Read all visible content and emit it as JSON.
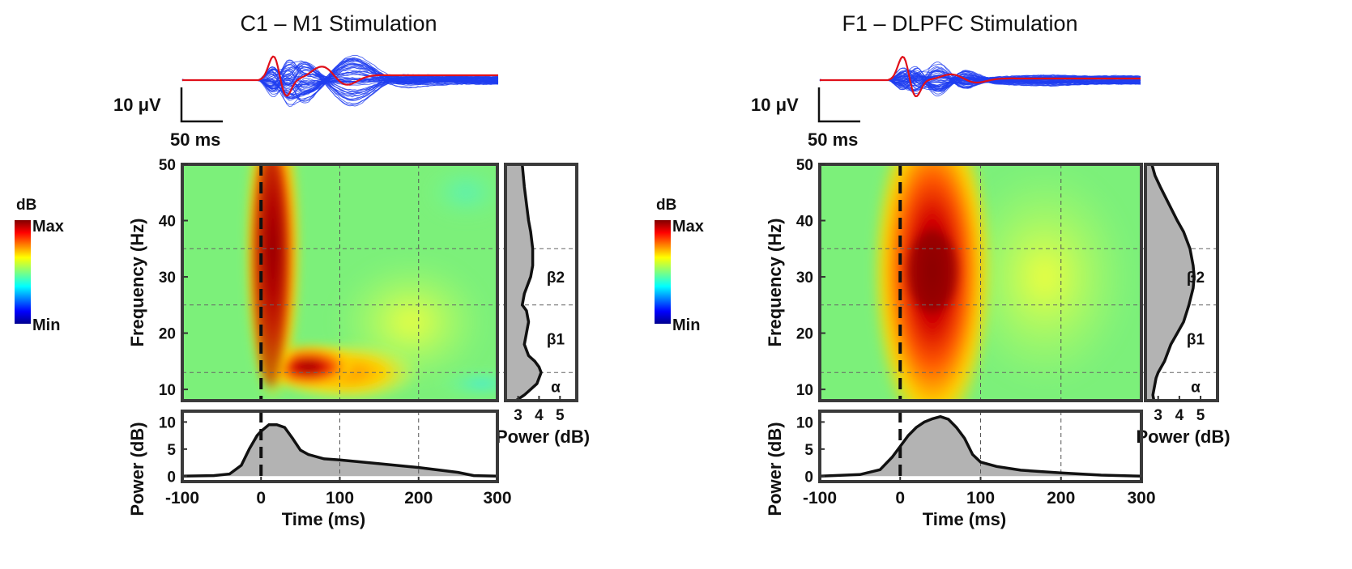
{
  "panels": [
    {
      "title": "C1 – M1 Stimulation",
      "scalebar": {
        "voltage_label": "10 μV",
        "time_label": "50 ms"
      },
      "colorbar": {
        "unit": "dB",
        "max_label": "Max",
        "min_label": "Min"
      },
      "tf_map": {
        "ylabel": "Frequency (Hz)",
        "yticks": [
          "10",
          "20",
          "30",
          "40",
          "50"
        ],
        "ylim": [
          8,
          50
        ],
        "xlim": [
          -100,
          300
        ],
        "hotspot": {
          "time_ms": 15,
          "freq_hz": 35
        }
      },
      "spectrum": {
        "xlabel": "Power (dB)",
        "xticks": [
          "3",
          "4",
          "5"
        ],
        "xlim": [
          2.4,
          5.8
        ],
        "bands": [
          {
            "label": "β2",
            "from_hz": 25,
            "to_hz": 35
          },
          {
            "label": "β1",
            "from_hz": 13,
            "to_hz": 25
          },
          {
            "label": "α",
            "from_hz": 8,
            "to_hz": 13
          }
        ],
        "freq_hz": [
          8,
          9,
          10,
          11,
          12,
          13,
          14,
          15,
          16,
          18,
          20,
          22,
          24,
          25,
          27,
          30,
          32,
          35,
          38,
          40,
          43,
          46,
          48,
          50
        ],
        "power_db": [
          2.9,
          3.3,
          3.6,
          3.9,
          4.0,
          4.1,
          4.0,
          3.8,
          3.5,
          3.3,
          3.4,
          3.5,
          3.4,
          3.2,
          3.3,
          3.6,
          3.7,
          3.7,
          3.6,
          3.5,
          3.4,
          3.3,
          3.25,
          3.2
        ]
      },
      "power_trace": {
        "ylabel": "Power (dB)",
        "yticks": [
          "0",
          "5",
          "10"
        ],
        "ylim": [
          -1,
          12
        ],
        "xlabel": "Time (ms)",
        "xticks": [
          "-100",
          "0",
          "100",
          "200",
          "300"
        ],
        "time_ms": [
          -100,
          -60,
          -40,
          -25,
          -15,
          -5,
          0,
          10,
          20,
          30,
          40,
          50,
          60,
          80,
          100,
          150,
          200,
          250,
          270,
          300
        ],
        "power_db": [
          0.0,
          0.1,
          0.4,
          2.0,
          5.0,
          7.5,
          8.3,
          9.5,
          9.5,
          9.0,
          7.0,
          4.8,
          4.0,
          3.2,
          3.0,
          2.3,
          1.6,
          0.7,
          0.1,
          0.0
        ]
      }
    },
    {
      "title": "F1 – DLPFC Stimulation",
      "scalebar": {
        "voltage_label": "10 μV",
        "time_label": "50 ms"
      },
      "colorbar": {
        "unit": "dB",
        "max_label": "Max",
        "min_label": "Min"
      },
      "tf_map": {
        "ylabel": "Frequency (Hz)",
        "yticks": [
          "10",
          "20",
          "30",
          "40",
          "50"
        ],
        "ylim": [
          8,
          50
        ],
        "xlim": [
          -100,
          300
        ],
        "hotspot": {
          "time_ms": 40,
          "freq_hz": 31
        }
      },
      "spectrum": {
        "xlabel": "Power (dB)",
        "xticks": [
          "3",
          "4",
          "5"
        ],
        "xlim": [
          2.4,
          5.8
        ],
        "bands": [
          {
            "label": "β2",
            "from_hz": 25,
            "to_hz": 35
          },
          {
            "label": "β1",
            "from_hz": 13,
            "to_hz": 25
          },
          {
            "label": "α",
            "from_hz": 8,
            "to_hz": 13
          }
        ],
        "freq_hz": [
          8,
          9,
          10,
          12,
          13,
          15,
          18,
          20,
          22,
          25,
          28,
          30,
          32,
          35,
          38,
          40,
          43,
          46,
          48,
          50
        ],
        "power_db": [
          2.8,
          2.75,
          2.8,
          2.9,
          3.0,
          3.3,
          3.6,
          3.9,
          4.2,
          4.45,
          4.65,
          4.7,
          4.65,
          4.5,
          4.2,
          3.9,
          3.5,
          3.1,
          2.85,
          2.7
        ]
      },
      "power_trace": {
        "ylabel": "Power (dB)",
        "yticks": [
          "0",
          "5",
          "10"
        ],
        "ylim": [
          -1,
          12
        ],
        "xlabel": "Time (ms)",
        "xticks": [
          "-100",
          "0",
          "100",
          "200",
          "300"
        ],
        "time_ms": [
          -100,
          -50,
          -25,
          -10,
          0,
          10,
          20,
          30,
          40,
          50,
          60,
          70,
          80,
          90,
          100,
          120,
          150,
          200,
          250,
          300
        ],
        "power_db": [
          0.0,
          0.3,
          1.2,
          3.5,
          5.5,
          7.5,
          9.0,
          10.0,
          10.6,
          11.0,
          10.5,
          9.0,
          7.0,
          4.0,
          2.6,
          1.8,
          1.1,
          0.6,
          0.2,
          0.0
        ]
      }
    }
  ],
  "chart_data": [
    {
      "type": "line",
      "title": "C1 – M1 Stimulation",
      "xlabel": "Time (ms)",
      "ylabel": "Power (dB)",
      "x": [
        -100,
        -60,
        -40,
        -25,
        -15,
        -5,
        0,
        10,
        20,
        30,
        40,
        50,
        60,
        80,
        100,
        150,
        200,
        250,
        270,
        300
      ],
      "values": [
        0.0,
        0.1,
        0.4,
        2.0,
        5.0,
        7.5,
        8.3,
        9.5,
        9.5,
        9.0,
        7.0,
        4.8,
        4.0,
        3.2,
        3.0,
        2.3,
        1.6,
        0.7,
        0.1,
        0.0
      ],
      "xlim": [
        -100,
        300
      ],
      "ylim": [
        0,
        12
      ]
    },
    {
      "type": "line",
      "title": "F1 – DLPFC Stimulation",
      "xlabel": "Time (ms)",
      "ylabel": "Power (dB)",
      "x": [
        -100,
        -50,
        -25,
        -10,
        0,
        10,
        20,
        30,
        40,
        50,
        60,
        70,
        80,
        90,
        100,
        120,
        150,
        200,
        250,
        300
      ],
      "values": [
        0.0,
        0.3,
        1.2,
        3.5,
        5.5,
        7.5,
        9.0,
        10.0,
        10.6,
        11.0,
        10.5,
        9.0,
        7.0,
        4.0,
        2.6,
        1.8,
        1.1,
        0.6,
        0.2,
        0.0
      ],
      "xlim": [
        -100,
        300
      ],
      "ylim": [
        0,
        12
      ]
    },
    {
      "type": "heatmap",
      "title": "C1 – M1 Stimulation",
      "xlabel": "Time (ms)",
      "ylabel": "Frequency (Hz)",
      "xlim": [
        -100,
        300
      ],
      "ylim": [
        8,
        50
      ]
    },
    {
      "type": "heatmap",
      "title": "F1 – DLPFC Stimulation",
      "xlabel": "Time (ms)",
      "ylabel": "Frequency (Hz)",
      "xlim": [
        -100,
        300
      ],
      "ylim": [
        8,
        50
      ]
    }
  ]
}
